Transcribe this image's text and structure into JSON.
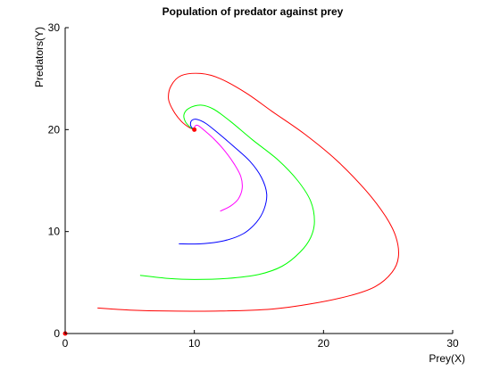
{
  "chart_data": {
    "type": "line",
    "title": "Population of predator against prey",
    "xlabel": "Prey(X)",
    "ylabel": "Predators(Y)",
    "xlim": [
      0,
      30
    ],
    "ylim": [
      0,
      30
    ],
    "xticks": [
      "0",
      "10",
      "20",
      "30"
    ],
    "yticks": [
      "0",
      "10",
      "20",
      "30"
    ],
    "grid": false,
    "legend": "none",
    "series": [
      {
        "color": "#ff0000",
        "points": [
          [
            2.5,
            2.5
          ],
          [
            5,
            2.3
          ],
          [
            8,
            2.2
          ],
          [
            12,
            2.2
          ],
          [
            16,
            2.4
          ],
          [
            19,
            2.9
          ],
          [
            22,
            3.7
          ],
          [
            24,
            4.6
          ],
          [
            25.3,
            6
          ],
          [
            25.8,
            7.5
          ],
          [
            25.6,
            9.5
          ],
          [
            24.8,
            11.5
          ],
          [
            23.3,
            14
          ],
          [
            21,
            17
          ],
          [
            18.5,
            19.6
          ],
          [
            16,
            21.8
          ],
          [
            14,
            23.6
          ],
          [
            12,
            25
          ],
          [
            10.5,
            25.5
          ],
          [
            9,
            25.3
          ],
          [
            8.2,
            24.3
          ],
          [
            8,
            23
          ],
          [
            8.4,
            21.8
          ],
          [
            9,
            20.8
          ],
          [
            9.6,
            20.2
          ],
          [
            10,
            20
          ]
        ]
      },
      {
        "color": "#00ff00",
        "points": [
          [
            5.8,
            5.7
          ],
          [
            8,
            5.4
          ],
          [
            10,
            5.3
          ],
          [
            12.5,
            5.4
          ],
          [
            15,
            5.8
          ],
          [
            16.8,
            6.6
          ],
          [
            18.2,
            8
          ],
          [
            19,
            9.4
          ],
          [
            19.3,
            11
          ],
          [
            19,
            13
          ],
          [
            18,
            15
          ],
          [
            16.5,
            17
          ],
          [
            14.5,
            19
          ],
          [
            12.8,
            20.8
          ],
          [
            11.5,
            22
          ],
          [
            10.5,
            22.4
          ],
          [
            9.6,
            22.1
          ],
          [
            9.2,
            21.5
          ],
          [
            9.3,
            20.8
          ],
          [
            9.7,
            20.2
          ],
          [
            10,
            20
          ]
        ]
      },
      {
        "color": "#0000ff",
        "points": [
          [
            8.8,
            8.8
          ],
          [
            10.5,
            8.8
          ],
          [
            12.3,
            9.1
          ],
          [
            13.8,
            9.8
          ],
          [
            14.8,
            10.9
          ],
          [
            15.4,
            12.2
          ],
          [
            15.6,
            13.7
          ],
          [
            15.2,
            15.3
          ],
          [
            14.3,
            16.9
          ],
          [
            13,
            18.4
          ],
          [
            11.8,
            19.7
          ],
          [
            10.9,
            20.6
          ],
          [
            10.2,
            21
          ],
          [
            9.8,
            20.9
          ],
          [
            9.7,
            20.5
          ],
          [
            9.8,
            20.2
          ],
          [
            10,
            20
          ]
        ]
      },
      {
        "color": "#ff00ff",
        "points": [
          [
            12,
            12
          ],
          [
            12.8,
            12.5
          ],
          [
            13.4,
            13.2
          ],
          [
            13.7,
            14.2
          ],
          [
            13.6,
            15.4
          ],
          [
            13.1,
            16.6
          ],
          [
            12.3,
            18
          ],
          [
            11.5,
            19.1
          ],
          [
            10.8,
            19.9
          ],
          [
            10.3,
            20.4
          ],
          [
            10.1,
            20.4
          ],
          [
            10,
            20.2
          ],
          [
            10,
            20
          ]
        ]
      }
    ],
    "markers": [
      {
        "x": 10,
        "y": 20,
        "color": "#ff0000"
      },
      {
        "x": 0,
        "y": 0,
        "color": "#ff0000"
      }
    ]
  }
}
